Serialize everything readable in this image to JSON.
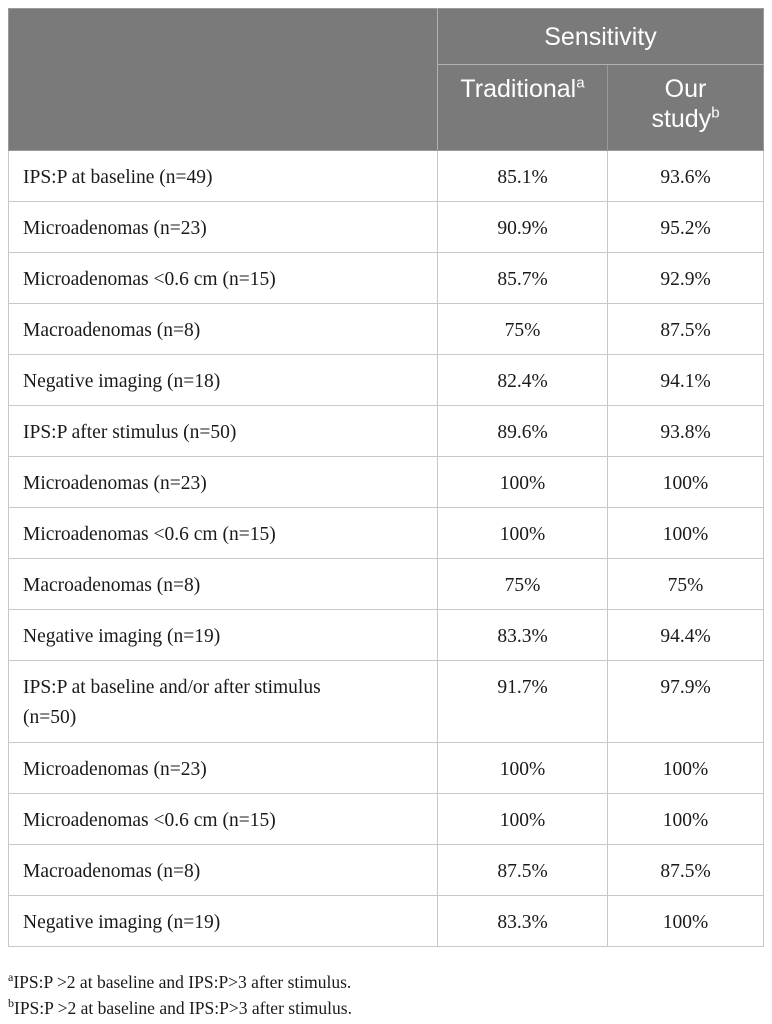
{
  "table": {
    "group_header": "Sensitivity",
    "columns": [
      {
        "label": "Traditional",
        "marker": "a"
      },
      {
        "label_line1": "Our",
        "label_line2": "study",
        "marker": "b"
      }
    ],
    "rows": [
      {
        "label": "IPS:P at baseline (n=49)",
        "traditional": "85.1%",
        "ours": "93.6%"
      },
      {
        "label": "Microadenomas (n=23)",
        "traditional": "90.9%",
        "ours": "95.2%"
      },
      {
        "label": "Microadenomas <0.6 cm (n=15)",
        "traditional": "85.7%",
        "ours": "92.9%"
      },
      {
        "label": "Macroadenomas (n=8)",
        "traditional": "75%",
        "ours": "87.5%"
      },
      {
        "label": "Negative imaging (n=18)",
        "traditional": "82.4%",
        "ours": "94.1%"
      },
      {
        "label": "IPS:P after stimulus (n=50)",
        "traditional": "89.6%",
        "ours": "93.8%"
      },
      {
        "label": "Microadenomas (n=23)",
        "traditional": "100%",
        "ours": "100%"
      },
      {
        "label": "Microadenomas <0.6 cm (n=15)",
        "traditional": "100%",
        "ours": "100%"
      },
      {
        "label": "Macroadenomas (n=8)",
        "traditional": "75%",
        "ours": "75%"
      },
      {
        "label": "Negative imaging (n=19)",
        "traditional": "83.3%",
        "ours": "94.4%"
      },
      {
        "label_line1": "IPS:P at baseline and/or after stimulus",
        "label_line2": "(n=50)",
        "traditional": "91.7%",
        "ours": "97.9%"
      },
      {
        "label": "Microadenomas (n=23)",
        "traditional": "100%",
        "ours": "100%"
      },
      {
        "label": "Microadenomas <0.6 cm (n=15)",
        "traditional": "100%",
        "ours": "100%"
      },
      {
        "label": "Macroadenomas (n=8)",
        "traditional": "87.5%",
        "ours": "87.5%"
      },
      {
        "label": "Negative imaging (n=19)",
        "traditional": "83.3%",
        "ours": "100%"
      }
    ]
  },
  "footnotes": [
    {
      "marker": "a",
      "text": "IPS:P >2 at baseline and IPS:P>3 after stimulus."
    },
    {
      "marker": "b",
      "text": "IPS:P >2 at baseline and IPS:P>3 after stimulus."
    }
  ],
  "colors": {
    "header_background": "#7a7a7a",
    "header_text": "#ffffff",
    "grid_lines": "#c8c8c8"
  }
}
